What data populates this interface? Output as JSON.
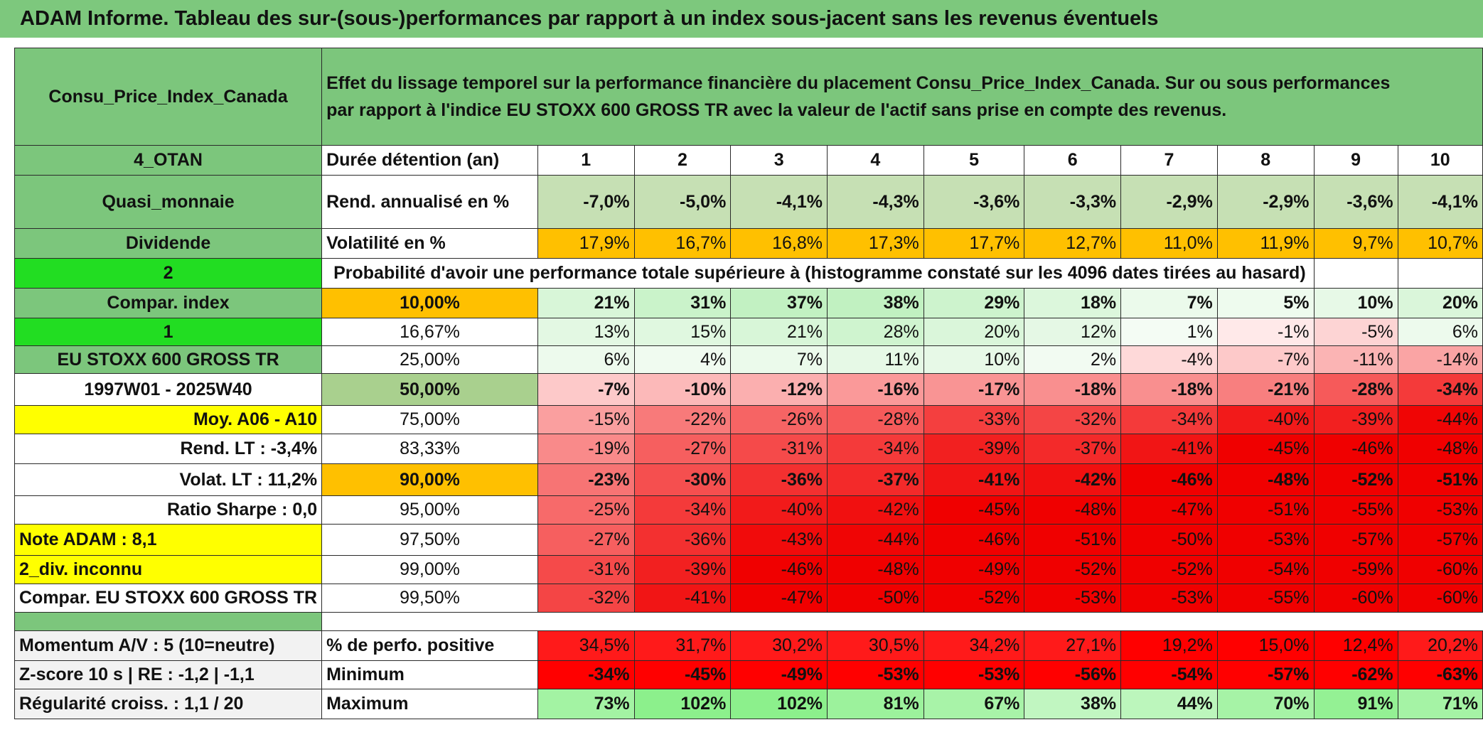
{
  "title": "ADAM Informe. Tableau des sur-(sous-)performances par rapport à un index sous-jacent sans les revenus éventuels",
  "header": {
    "asset": "Consu_Price_Index_Canada",
    "description_line1": "Effet du lissage temporel sur la performance financière du placement Consu_Price_Index_Canada. Sur ou sous performances",
    "description_line2": "par rapport à l'indice EU STOXX 600 GROSS TR avec la valeur de l'actif sans prise en compte des revenus."
  },
  "left_labels": {
    "otan": "4_OTAN",
    "quasi": "Quasi_monnaie",
    "dividende": "Dividende",
    "two": "2",
    "compar_index": "Compar. index",
    "one": "1",
    "index_name": "EU STOXX 600 GROSS TR",
    "period": "1997W01 - 2025W40",
    "moy": "Moy. A06 - A10",
    "rend_lt": "Rend. LT :    -3,4%",
    "volat_lt": "Volat. LT :    11,2%",
    "sharpe": "Ratio Sharpe :    0,0",
    "note": "Note ADAM : 8,1",
    "div": "2_div. inconnu",
    "compar": "Compar. EU STOXX 600 GROSS TR",
    "momentum": "Momentum A/V : 5 (10=neutre)",
    "zscore": "Z-score 10 s | RE : -1,2 | -1,1",
    "regularite": "Régularité croiss. : 1,1 / 20"
  },
  "row_labels": {
    "duree": "Durée détention (an)",
    "rend": "Rend. annualisé en %",
    "vol": "Volatilité en %",
    "proba": "Probabilité d'avoir une performance totale supérieure à (histogramme constaté sur les 4096 dates tirées au hasard)",
    "positive": "% de perfo. positive",
    "minimum": "Minimum",
    "maximum": "Maximum"
  },
  "years": [
    "1",
    "2",
    "3",
    "4",
    "5",
    "6",
    "7",
    "8",
    "9",
    "10"
  ],
  "rend": [
    "-7,0%",
    "-5,0%",
    "-4,1%",
    "-4,3%",
    "-3,6%",
    "-3,3%",
    "-2,9%",
    "-2,9%",
    "-3,6%",
    "-4,1%"
  ],
  "vol": [
    "17,9%",
    "16,7%",
    "16,8%",
    "17,3%",
    "17,7%",
    "12,7%",
    "11,0%",
    "11,9%",
    "9,7%",
    "10,7%"
  ],
  "prob_rows": [
    {
      "p": "10,00%",
      "v": [
        "21%",
        "31%",
        "37%",
        "38%",
        "29%",
        "18%",
        "7%",
        "5%",
        "10%",
        "20%"
      ]
    },
    {
      "p": "16,67%",
      "v": [
        "13%",
        "15%",
        "21%",
        "28%",
        "20%",
        "12%",
        "1%",
        "-1%",
        "-5%",
        "6%"
      ]
    },
    {
      "p": "25,00%",
      "v": [
        "6%",
        "4%",
        "7%",
        "11%",
        "10%",
        "2%",
        "-4%",
        "-7%",
        "-11%",
        "-14%"
      ]
    },
    {
      "p": "50,00%",
      "v": [
        "-7%",
        "-10%",
        "-12%",
        "-16%",
        "-17%",
        "-18%",
        "-18%",
        "-21%",
        "-28%",
        "-34%"
      ]
    },
    {
      "p": "75,00%",
      "v": [
        "-15%",
        "-22%",
        "-26%",
        "-28%",
        "-33%",
        "-32%",
        "-34%",
        "-40%",
        "-39%",
        "-44%"
      ]
    },
    {
      "p": "83,33%",
      "v": [
        "-19%",
        "-27%",
        "-31%",
        "-34%",
        "-39%",
        "-37%",
        "-41%",
        "-45%",
        "-46%",
        "-48%"
      ]
    },
    {
      "p": "90,00%",
      "v": [
        "-23%",
        "-30%",
        "-36%",
        "-37%",
        "-41%",
        "-42%",
        "-46%",
        "-48%",
        "-52%",
        "-51%"
      ]
    },
    {
      "p": "95,00%",
      "v": [
        "-25%",
        "-34%",
        "-40%",
        "-42%",
        "-45%",
        "-48%",
        "-47%",
        "-51%",
        "-55%",
        "-53%"
      ]
    },
    {
      "p": "97,50%",
      "v": [
        "-27%",
        "-36%",
        "-43%",
        "-44%",
        "-46%",
        "-51%",
        "-50%",
        "-53%",
        "-57%",
        "-57%"
      ]
    },
    {
      "p": "99,00%",
      "v": [
        "-31%",
        "-39%",
        "-46%",
        "-48%",
        "-49%",
        "-52%",
        "-52%",
        "-54%",
        "-59%",
        "-60%"
      ]
    },
    {
      "p": "99,50%",
      "v": [
        "-32%",
        "-41%",
        "-47%",
        "-50%",
        "-52%",
        "-53%",
        "-53%",
        "-55%",
        "-60%",
        "-60%"
      ]
    }
  ],
  "positive": [
    "34,5%",
    "31,7%",
    "30,2%",
    "30,5%",
    "34,2%",
    "27,1%",
    "19,2%",
    "15,0%",
    "12,4%",
    "20,2%"
  ],
  "minimum": [
    "-34%",
    "-45%",
    "-49%",
    "-53%",
    "-53%",
    "-56%",
    "-54%",
    "-57%",
    "-62%",
    "-63%"
  ],
  "maximum": [
    "73%",
    "102%",
    "102%",
    "81%",
    "67%",
    "38%",
    "44%",
    "70%",
    "91%",
    "71%"
  ],
  "colors": {
    "title_green": "#7dc87d",
    "bright_green": "#22dd22",
    "orange": "#ffc000",
    "yellow": "#ffff00",
    "red": "#ff0000"
  }
}
